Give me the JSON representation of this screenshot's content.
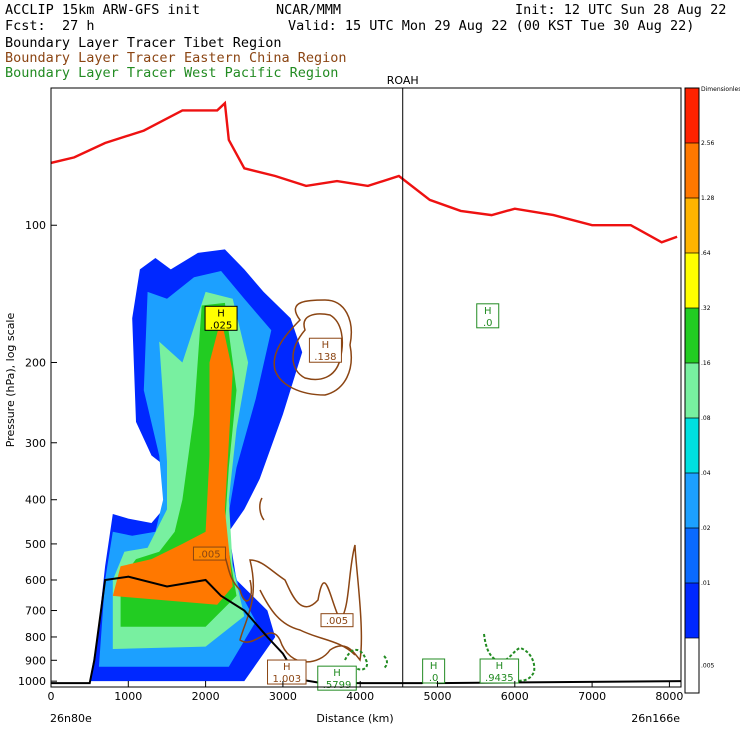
{
  "header": {
    "model": "ACCLIP 15km ARW-GFS init",
    "org": "NCAR/MMM",
    "init": "Init: 12 UTC Sun 28 Aug 22",
    "fcst_label": "Fcst:",
    "fcst_value": "27 h",
    "valid": "Valid: 15 UTC Mon 29 Aug 22 (00 KST Tue 30 Aug 22)"
  },
  "legend": [
    {
      "prefix": "Boundary Layer Tracer",
      "region": "Tibet Region",
      "color": "#000000"
    },
    {
      "prefix": "Boundary Layer Tracer",
      "region": "Eastern China Region",
      "color": "#8b4513"
    },
    {
      "prefix": "Boundary Layer Tracer",
      "region": "West Pacific Region",
      "color": "#228b22"
    }
  ],
  "chart_data": {
    "type": "heatmap",
    "xlabel": "Distance (km)",
    "ylabel": "Pressure (hPa), log scale",
    "xlim": [
      0,
      8150
    ],
    "ylim": [
      1030,
      50
    ],
    "yscale": "log",
    "x_ticks": [
      "0",
      "1000",
      "2000",
      "3000",
      "4000",
      "5000",
      "6000",
      "7000",
      "8000"
    ],
    "y_ticks": [
      "100",
      "200",
      "300",
      "400",
      "500",
      "600",
      "700",
      "800",
      "900",
      "1000"
    ],
    "x_endpoints": {
      "left": "26n80e",
      "right": "26n166e"
    },
    "vertical_marker": {
      "label": "ROAH",
      "x_km": 4550
    },
    "tropopause_line": {
      "color": "#ee1111",
      "points": [
        [
          0,
          73
        ],
        [
          300,
          71
        ],
        [
          700,
          66
        ],
        [
          1200,
          62
        ],
        [
          1700,
          56
        ],
        [
          2150,
          56
        ],
        [
          2250,
          54
        ],
        [
          2300,
          65
        ],
        [
          2500,
          75
        ],
        [
          2900,
          78
        ],
        [
          3300,
          82
        ],
        [
          3700,
          80
        ],
        [
          4100,
          82
        ],
        [
          4500,
          78
        ],
        [
          4900,
          88
        ],
        [
          5300,
          93
        ],
        [
          5700,
          95
        ],
        [
          6000,
          92
        ],
        [
          6500,
          95
        ],
        [
          7000,
          100
        ],
        [
          7500,
          100
        ],
        [
          7900,
          109
        ],
        [
          8100,
          106
        ]
      ]
    },
    "terrain_line": {
      "color": "#000000",
      "points": [
        [
          0,
          1010
        ],
        [
          500,
          1010
        ],
        [
          560,
          900
        ],
        [
          700,
          600
        ],
        [
          1000,
          590
        ],
        [
          1500,
          620
        ],
        [
          2000,
          600
        ],
        [
          2200,
          650
        ],
        [
          2500,
          700
        ],
        [
          2800,
          800
        ],
        [
          3000,
          870
        ],
        [
          3200,
          990
        ],
        [
          3500,
          1010
        ],
        [
          4800,
          1010
        ],
        [
          4900,
          990
        ],
        [
          5000,
          1010
        ],
        [
          8150,
          1000
        ]
      ]
    },
    "colorbar": {
      "title": "Dimensionless",
      "labels": [
        ".005",
        ".01",
        ".02",
        ".04",
        ".08",
        ".16",
        ".32",
        ".64",
        "1.28",
        "2.56"
      ],
      "colors": [
        "#ffffff",
        "#0028ff",
        "#0a6aff",
        "#1ca0ff",
        "#00e0e0",
        "#78f0a0",
        "#22cc22",
        "#ffff00",
        "#ffb400",
        "#ff7800",
        "#ff2200"
      ]
    },
    "labels": [
      {
        "letter": "H",
        "value": ".025",
        "x_km": 2200,
        "p": 160,
        "color": "#000000",
        "fill": "#ffff00"
      },
      {
        "letter": "H",
        "value": ".138",
        "x_km": 3550,
        "p": 188,
        "color": "#8b4513",
        "fill": "#ffffff"
      },
      {
        "letter": "H",
        "value": ".0",
        "x_km": 5650,
        "p": 158,
        "color": "#228b22",
        "fill": "#ffffff"
      },
      {
        "letter": "",
        "value": ".005",
        "x_km": 2050,
        "p": 525,
        "color": "#8b4513",
        "fill": "#ff8800"
      },
      {
        "letter": "",
        "value": ".005",
        "x_km": 3700,
        "p": 735,
        "color": "#8b4513",
        "fill": "#ffffff"
      },
      {
        "letter": "H",
        "value": "1.003",
        "x_km": 3050,
        "p": 955,
        "color": "#8b4513",
        "fill": "#ffffff"
      },
      {
        "letter": "H",
        "value": ".5799",
        "x_km": 3700,
        "p": 985,
        "color": "#228b22",
        "fill": "#ffffff"
      },
      {
        "letter": "H",
        "value": ".0",
        "x_km": 4950,
        "p": 950,
        "color": "#228b22",
        "fill": "#ffffff"
      },
      {
        "letter": "H",
        "value": ".9435",
        "x_km": 5800,
        "p": 950,
        "color": "#228b22",
        "fill": "#ffffff"
      }
    ],
    "blobs": [
      {
        "level": 1,
        "points": [
          [
            1150,
            125
          ],
          [
            1350,
            118
          ],
          [
            1550,
            125
          ],
          [
            1900,
            115
          ],
          [
            2250,
            113
          ],
          [
            2500,
            125
          ],
          [
            2750,
            140
          ],
          [
            3100,
            160
          ],
          [
            3250,
            190
          ],
          [
            3000,
            260
          ],
          [
            2700,
            360
          ],
          [
            2500,
            420
          ],
          [
            2300,
            470
          ],
          [
            2400,
            600
          ],
          [
            2800,
            700
          ],
          [
            2900,
            800
          ],
          [
            2500,
            1000
          ],
          [
            500,
            1000
          ],
          [
            600,
            800
          ],
          [
            700,
            560
          ],
          [
            800,
            430
          ],
          [
            1000,
            440
          ],
          [
            1300,
            450
          ],
          [
            1450,
            420
          ],
          [
            1500,
            340
          ],
          [
            1300,
            320
          ],
          [
            1100,
            270
          ],
          [
            1050,
            160
          ]
        ]
      },
      {
        "level": 3,
        "points": [
          [
            1250,
            140
          ],
          [
            1500,
            145
          ],
          [
            1850,
            130
          ],
          [
            2200,
            126
          ],
          [
            2500,
            145
          ],
          [
            2850,
            170
          ],
          [
            2650,
            240
          ],
          [
            2400,
            340
          ],
          [
            2250,
            480
          ],
          [
            2450,
            640
          ],
          [
            2650,
            740
          ],
          [
            2300,
            930
          ],
          [
            620,
            930
          ],
          [
            700,
            600
          ],
          [
            800,
            470
          ],
          [
            1050,
            480
          ],
          [
            1350,
            470
          ],
          [
            1450,
            400
          ],
          [
            1400,
            320
          ],
          [
            1200,
            230
          ]
        ]
      },
      {
        "level": 5,
        "points": [
          [
            1400,
            180
          ],
          [
            1700,
            200
          ],
          [
            2000,
            140
          ],
          [
            2350,
            145
          ],
          [
            2550,
            200
          ],
          [
            2400,
            280
          ],
          [
            2300,
            400
          ],
          [
            2350,
            560
          ],
          [
            2500,
            720
          ],
          [
            2000,
            840
          ],
          [
            800,
            850
          ],
          [
            800,
            600
          ],
          [
            950,
            520
          ],
          [
            1250,
            510
          ],
          [
            1500,
            420
          ],
          [
            1500,
            330
          ],
          [
            1450,
            240
          ]
        ]
      },
      {
        "level": 6,
        "points": [
          [
            1950,
            150
          ],
          [
            2250,
            148
          ],
          [
            2400,
            230
          ],
          [
            2300,
            340
          ],
          [
            2250,
            460
          ],
          [
            2400,
            650
          ],
          [
            2000,
            760
          ],
          [
            900,
            760
          ],
          [
            900,
            600
          ],
          [
            1100,
            540
          ],
          [
            1400,
            520
          ],
          [
            1600,
            470
          ],
          [
            1700,
            400
          ],
          [
            1850,
            260
          ]
        ]
      },
      {
        "level": 9,
        "points": [
          [
            2050,
            200
          ],
          [
            2200,
            160
          ],
          [
            2350,
            210
          ],
          [
            2300,
            300
          ],
          [
            2250,
            420
          ],
          [
            2350,
            620
          ],
          [
            2150,
            680
          ],
          [
            800,
            650
          ],
          [
            900,
            560
          ],
          [
            1300,
            540
          ],
          [
            1700,
            500
          ],
          [
            2000,
            470
          ],
          [
            2050,
            320
          ]
        ]
      }
    ]
  }
}
